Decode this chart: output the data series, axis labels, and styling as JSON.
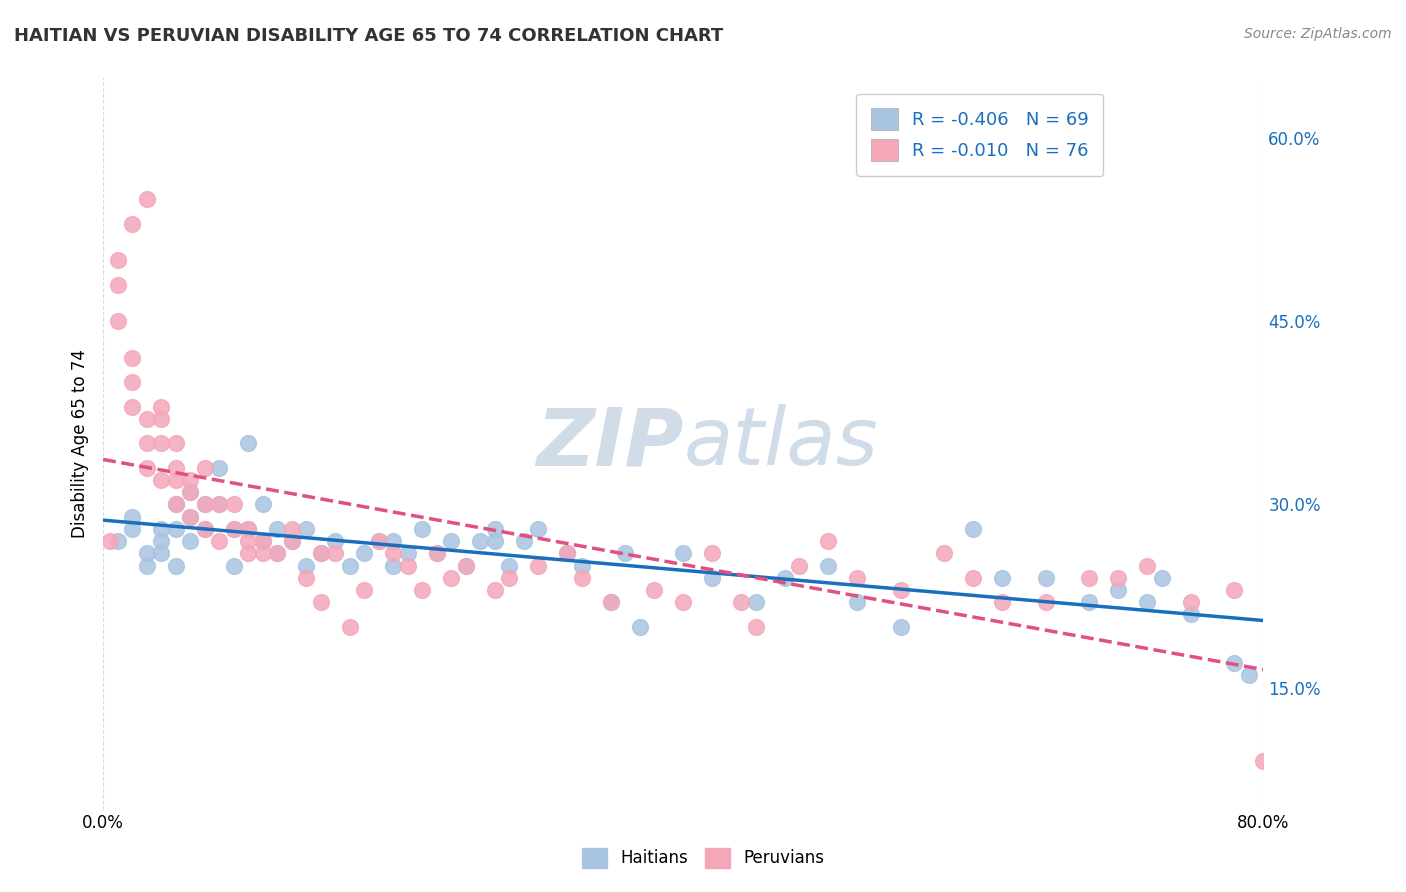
{
  "title": "HAITIAN VS PERUVIAN DISABILITY AGE 65 TO 74 CORRELATION CHART",
  "source_text": "Source: ZipAtlas.com",
  "ylabel": "Disability Age 65 to 74",
  "xlim": [
    0.0,
    0.8
  ],
  "ylim": [
    0.05,
    0.65
  ],
  "haitians_R": -0.406,
  "haitians_N": 69,
  "peruvians_R": -0.01,
  "peruvians_N": 76,
  "haitian_color": "#a8c4e0",
  "peruvian_color": "#f4a7b9",
  "haitian_line_color": "#1a6fbd",
  "peruvian_line_color": "#e05080",
  "background_color": "#ffffff",
  "grid_color": "#cccccc",
  "watermark_zip": "ZIP",
  "watermark_atlas": "atlas",
  "watermark_color": "#d0dce8",
  "haitian_x": [
    0.01,
    0.02,
    0.02,
    0.03,
    0.03,
    0.04,
    0.04,
    0.04,
    0.05,
    0.05,
    0.05,
    0.06,
    0.06,
    0.06,
    0.07,
    0.07,
    0.08,
    0.08,
    0.09,
    0.09,
    0.1,
    0.1,
    0.11,
    0.11,
    0.12,
    0.12,
    0.13,
    0.14,
    0.14,
    0.15,
    0.16,
    0.17,
    0.18,
    0.19,
    0.2,
    0.2,
    0.21,
    0.22,
    0.23,
    0.24,
    0.25,
    0.26,
    0.27,
    0.27,
    0.28,
    0.29,
    0.3,
    0.32,
    0.33,
    0.35,
    0.36,
    0.37,
    0.4,
    0.42,
    0.45,
    0.47,
    0.5,
    0.52,
    0.55,
    0.6,
    0.62,
    0.65,
    0.68,
    0.7,
    0.72,
    0.73,
    0.75,
    0.78,
    0.79
  ],
  "haitian_y": [
    0.27,
    0.29,
    0.28,
    0.26,
    0.25,
    0.27,
    0.26,
    0.28,
    0.25,
    0.28,
    0.3,
    0.27,
    0.29,
    0.31,
    0.28,
    0.3,
    0.33,
    0.3,
    0.25,
    0.28,
    0.35,
    0.28,
    0.27,
    0.3,
    0.26,
    0.28,
    0.27,
    0.25,
    0.28,
    0.26,
    0.27,
    0.25,
    0.26,
    0.27,
    0.27,
    0.25,
    0.26,
    0.28,
    0.26,
    0.27,
    0.25,
    0.27,
    0.27,
    0.28,
    0.25,
    0.27,
    0.28,
    0.26,
    0.25,
    0.22,
    0.26,
    0.2,
    0.26,
    0.24,
    0.22,
    0.24,
    0.25,
    0.22,
    0.2,
    0.28,
    0.24,
    0.24,
    0.22,
    0.23,
    0.22,
    0.24,
    0.21,
    0.17,
    0.16
  ],
  "peruvian_x": [
    0.005,
    0.01,
    0.01,
    0.01,
    0.02,
    0.02,
    0.02,
    0.02,
    0.03,
    0.03,
    0.03,
    0.03,
    0.04,
    0.04,
    0.04,
    0.04,
    0.05,
    0.05,
    0.05,
    0.05,
    0.06,
    0.06,
    0.06,
    0.07,
    0.07,
    0.07,
    0.08,
    0.08,
    0.09,
    0.09,
    0.1,
    0.1,
    0.1,
    0.11,
    0.11,
    0.12,
    0.13,
    0.13,
    0.14,
    0.15,
    0.15,
    0.16,
    0.17,
    0.18,
    0.19,
    0.2,
    0.21,
    0.22,
    0.23,
    0.24,
    0.25,
    0.27,
    0.28,
    0.3,
    0.32,
    0.33,
    0.35,
    0.38,
    0.4,
    0.42,
    0.44,
    0.45,
    0.48,
    0.5,
    0.52,
    0.55,
    0.58,
    0.6,
    0.62,
    0.65,
    0.68,
    0.7,
    0.72,
    0.75,
    0.78,
    0.8
  ],
  "peruvian_y": [
    0.27,
    0.5,
    0.48,
    0.45,
    0.42,
    0.4,
    0.38,
    0.53,
    0.55,
    0.37,
    0.35,
    0.33,
    0.38,
    0.35,
    0.37,
    0.32,
    0.32,
    0.3,
    0.33,
    0.35,
    0.31,
    0.29,
    0.32,
    0.3,
    0.28,
    0.33,
    0.3,
    0.27,
    0.3,
    0.28,
    0.27,
    0.26,
    0.28,
    0.26,
    0.27,
    0.26,
    0.28,
    0.27,
    0.24,
    0.26,
    0.22,
    0.26,
    0.2,
    0.23,
    0.27,
    0.26,
    0.25,
    0.23,
    0.26,
    0.24,
    0.25,
    0.23,
    0.24,
    0.25,
    0.26,
    0.24,
    0.22,
    0.23,
    0.22,
    0.26,
    0.22,
    0.2,
    0.25,
    0.27,
    0.24,
    0.23,
    0.26,
    0.24,
    0.22,
    0.22,
    0.24,
    0.24,
    0.25,
    0.22,
    0.23,
    0.09
  ]
}
